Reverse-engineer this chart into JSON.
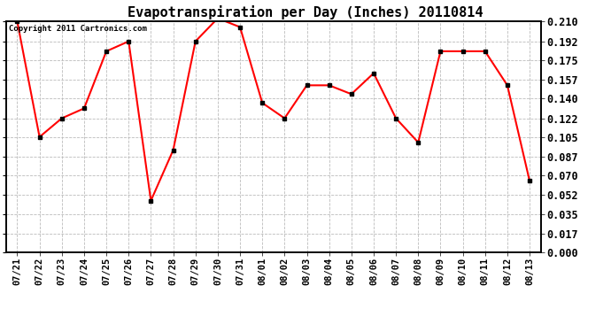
{
  "title": "Evapotranspiration per Day (Inches) 20110814",
  "copyright_text": "Copyright 2011 Cartronics.com",
  "x_labels": [
    "07/21",
    "07/22",
    "07/23",
    "07/24",
    "07/25",
    "07/26",
    "07/27",
    "07/28",
    "07/29",
    "07/30",
    "07/31",
    "08/01",
    "08/02",
    "08/03",
    "08/04",
    "08/05",
    "08/06",
    "08/07",
    "08/08",
    "08/09",
    "08/10",
    "08/11",
    "08/12",
    "08/13"
  ],
  "y_values": [
    0.21,
    0.105,
    0.122,
    0.131,
    0.183,
    0.192,
    0.047,
    0.093,
    0.192,
    0.213,
    0.205,
    0.136,
    0.122,
    0.152,
    0.152,
    0.144,
    0.163,
    0.122,
    0.1,
    0.183,
    0.183,
    0.183,
    0.152,
    0.065
  ],
  "y_ticks": [
    0.0,
    0.017,
    0.035,
    0.052,
    0.07,
    0.087,
    0.105,
    0.122,
    0.14,
    0.157,
    0.175,
    0.192,
    0.21
  ],
  "ylim": [
    0.0,
    0.21
  ],
  "line_color": "red",
  "marker": "s",
  "marker_color": "black",
  "marker_size": 2.5,
  "line_width": 1.5,
  "grid_color": "#bbbbbb",
  "bg_color": "white",
  "title_fontsize": 11,
  "copyright_fontsize": 6.5,
  "tick_fontsize": 7.5,
  "ytick_fontsize": 8.5
}
